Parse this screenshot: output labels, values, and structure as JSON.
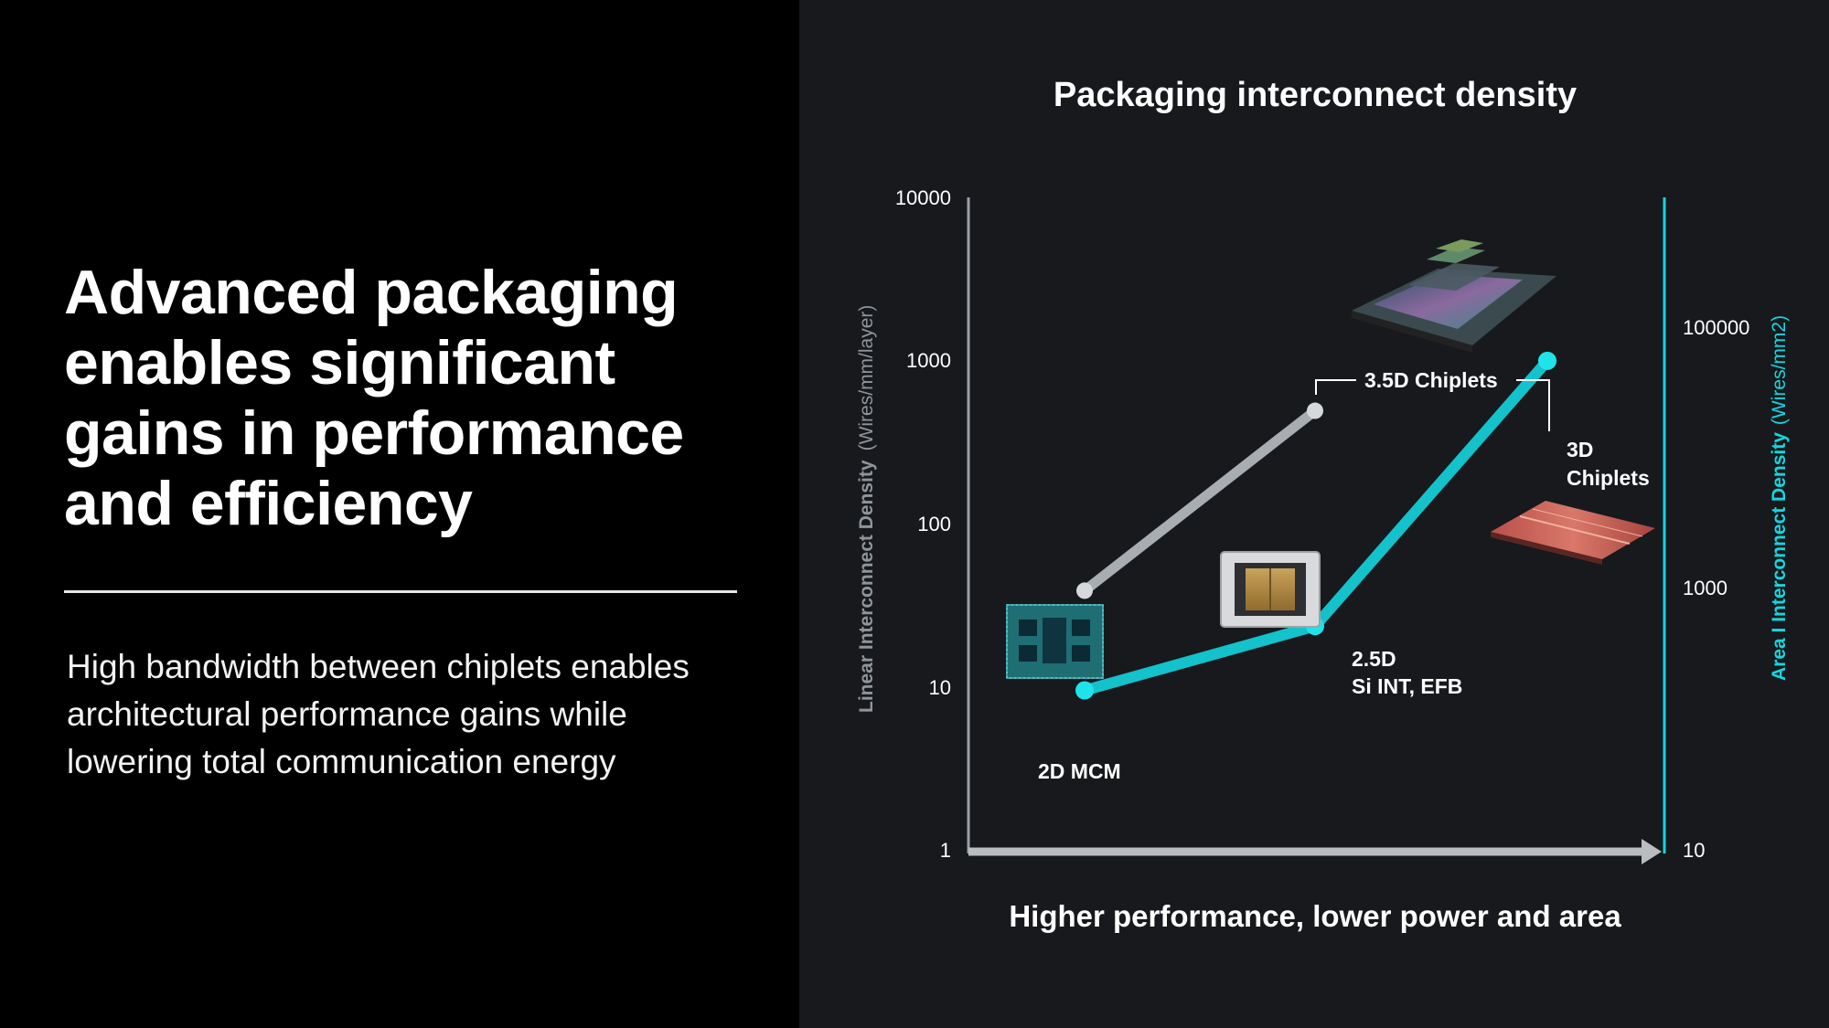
{
  "slide": {
    "title_lines": [
      "Advanced packaging",
      "enables significant",
      "gains in performance",
      "and efficiency"
    ],
    "body_lines": [
      "High bandwidth between chiplets enables",
      "architectural performance gains while",
      "lowering total communication energy"
    ]
  },
  "colors": {
    "left_background": "#000000",
    "right_background": "#17191d",
    "linear_series": "#a7adb1",
    "area_series": "#13c2ca",
    "area_axis": "#14d6de",
    "x_axis_arrow": "#b9bdc0"
  },
  "chart_data": {
    "type": "line",
    "title": "Packaging interconnect density",
    "xlabel": "Higher performance, lower power and area",
    "y_left": {
      "label": "Linear Interconnect Density",
      "unit": "(Wires/mm/layer)",
      "scale": "log",
      "ticks": [
        "1",
        "10",
        "100",
        "1000",
        "10000"
      ],
      "range": [
        1,
        10000
      ]
    },
    "y_right": {
      "label": "Area I Interconnect Density",
      "unit": "(Wires/mm2)",
      "scale": "log",
      "ticks": [
        "10",
        "1000",
        "100000"
      ],
      "range": [
        10,
        10000000
      ]
    },
    "categories": [
      "2D MCM",
      "2.5D Si INT, EFB",
      "3D Chiplets"
    ],
    "series": [
      {
        "axis": "left",
        "color": "#a7adb1",
        "points": [
          {
            "category": "2D MCM",
            "y": 40
          },
          {
            "category": "2.5D Si INT, EFB",
            "y": 500
          }
        ]
      },
      {
        "axis": "right",
        "color": "#13c2ca",
        "points": [
          {
            "category": "2D MCM",
            "y": 310
          },
          {
            "category": "2.5D Si INT, EFB",
            "y": 1200
          },
          {
            "category": "3D Chiplets",
            "y": 320000
          }
        ]
      }
    ],
    "annotations": {
      "mcm": "2D MCM",
      "d25_line1": "2.5D",
      "d25_line2": "Si INT, EFB",
      "d3_line1": "3D",
      "d3_line2": "Chiplets",
      "d35": "3.5D Chiplets"
    }
  }
}
